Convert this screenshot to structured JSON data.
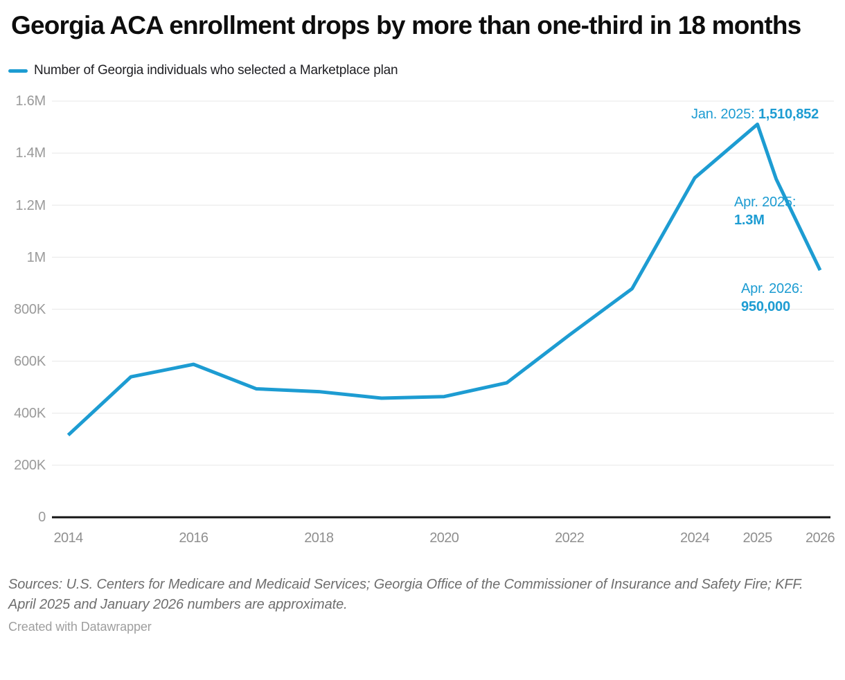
{
  "header": {
    "title": "Georgia ACA enrollment drops by more than one-third in 18 months"
  },
  "legend": {
    "label": "Number of Georgia individuals who selected a Marketplace plan",
    "swatch_color": "#1d9cd2"
  },
  "chart_data": {
    "type": "line",
    "title": "Georgia ACA enrollment drops by more than one-third in 18 months",
    "grid": "horizontal",
    "legend_position": "top",
    "ylim": [
      0,
      1600000
    ],
    "xlim": [
      2014,
      2026
    ],
    "series": [
      {
        "name": "Number of Georgia individuals who selected a Marketplace plan",
        "color": "#1d9cd2",
        "points": [
          {
            "label": "2014",
            "x": 2014,
            "value": 316000
          },
          {
            "label": "2015",
            "x": 2015,
            "value": 540000
          },
          {
            "label": "2016",
            "x": 2016,
            "value": 588000
          },
          {
            "label": "2017",
            "x": 2017,
            "value": 494000
          },
          {
            "label": "2018",
            "x": 2018,
            "value": 483000
          },
          {
            "label": "2019",
            "x": 2019,
            "value": 458000
          },
          {
            "label": "2020",
            "x": 2020,
            "value": 464000
          },
          {
            "label": "2021",
            "x": 2021,
            "value": 517000
          },
          {
            "label": "2022",
            "x": 2022,
            "value": 701000
          },
          {
            "label": "2023",
            "x": 2023,
            "value": 879000
          },
          {
            "label": "2024",
            "x": 2024,
            "value": 1305000
          },
          {
            "label": "Jan. 2025",
            "x": 2025,
            "value": 1510852
          },
          {
            "label": "Apr. 2025",
            "x": 2025.3,
            "value": 1300000
          },
          {
            "label": "Apr. 2026",
            "x": 2026,
            "value": 950000
          }
        ]
      }
    ],
    "yticks": [
      {
        "value": 0,
        "label": "0"
      },
      {
        "value": 200000,
        "label": "200K"
      },
      {
        "value": 400000,
        "label": "400K"
      },
      {
        "value": 600000,
        "label": "600K"
      },
      {
        "value": 800000,
        "label": "800K"
      },
      {
        "value": 1000000,
        "label": "1M"
      },
      {
        "value": 1200000,
        "label": "1.2M"
      },
      {
        "value": 1400000,
        "label": "1.4M"
      },
      {
        "value": 1600000,
        "label": "1.6M"
      }
    ],
    "xticks": [
      {
        "x": 2014,
        "label": "2014"
      },
      {
        "x": 2016,
        "label": "2016"
      },
      {
        "x": 2018,
        "label": "2018"
      },
      {
        "x": 2020,
        "label": "2020"
      },
      {
        "x": 2022,
        "label": "2022"
      },
      {
        "x": 2024,
        "label": "2024"
      },
      {
        "x": 2025,
        "label": "2025"
      },
      {
        "x": 2026,
        "label": "2026"
      }
    ],
    "annotations": [
      {
        "label": "Jan. 2025: ",
        "value": "1,510,852"
      },
      {
        "label": "Apr. 2025:",
        "value": "1.3M"
      },
      {
        "label": "Apr. 2026:",
        "value": "950,000"
      }
    ]
  },
  "footer": {
    "sources": "Sources: U.S. Centers for Medicare and Medicaid Services; Georgia Office of the Commissioner of Insurance and Safety Fire; KFF. April 2025 and January 2026 numbers are approximate.",
    "credit": "Created with Datawrapper"
  }
}
